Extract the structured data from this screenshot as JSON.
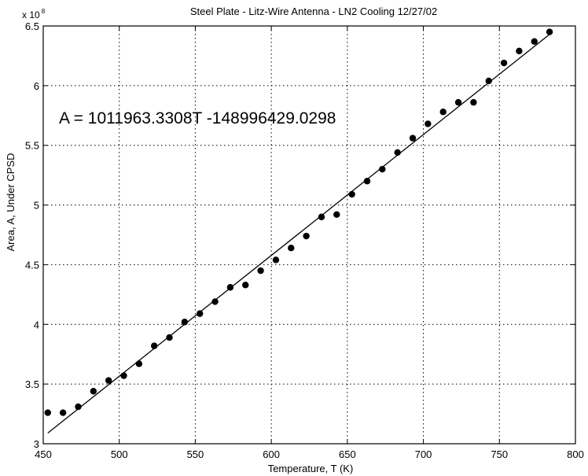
{
  "chart_data": {
    "type": "scatter",
    "title": "Steel Plate - Litz-Wire Antenna - LN2 Cooling 12/27/02",
    "xlabel": "Temperature, T (K)",
    "ylabel": "Area, A, Under CPSD",
    "x_tick_labels": [
      "450",
      "500",
      "550",
      "600",
      "650",
      "700",
      "750",
      "800"
    ],
    "y_tick_labels": [
      "3",
      "3.5",
      "4",
      "4.5",
      "5",
      "5.5",
      "6",
      "6.5"
    ],
    "y_multiplier_base": "x 10",
    "y_multiplier_exponent": "8",
    "xlim": [
      450,
      800
    ],
    "ylim": [
      3.0,
      6.5
    ],
    "y_scale_factor": 100000000,
    "grid": true,
    "annotation": "A = 1011963.3308T -148996429.0298",
    "fit_line": {
      "x": [
        453,
        783
      ],
      "y": [
        3.09,
        6.43
      ]
    },
    "series": [
      {
        "x": [
          453,
          463,
          473,
          483,
          493,
          503,
          513,
          523,
          533,
          543,
          553,
          563,
          573,
          583,
          593,
          603,
          613,
          623,
          633,
          643,
          653,
          663,
          673,
          683,
          693,
          703,
          713,
          723,
          733,
          743,
          753,
          763,
          773,
          783
        ],
        "y": [
          3.26,
          3.26,
          3.31,
          3.44,
          3.53,
          3.57,
          3.67,
          3.82,
          3.89,
          4.02,
          4.09,
          4.19,
          4.31,
          4.33,
          4.45,
          4.54,
          4.64,
          4.74,
          4.9,
          4.92,
          5.09,
          5.2,
          5.3,
          5.44,
          5.56,
          5.68,
          5.78,
          5.86,
          5.86,
          6.04,
          6.19,
          6.29,
          6.37,
          6.45
        ]
      }
    ]
  }
}
